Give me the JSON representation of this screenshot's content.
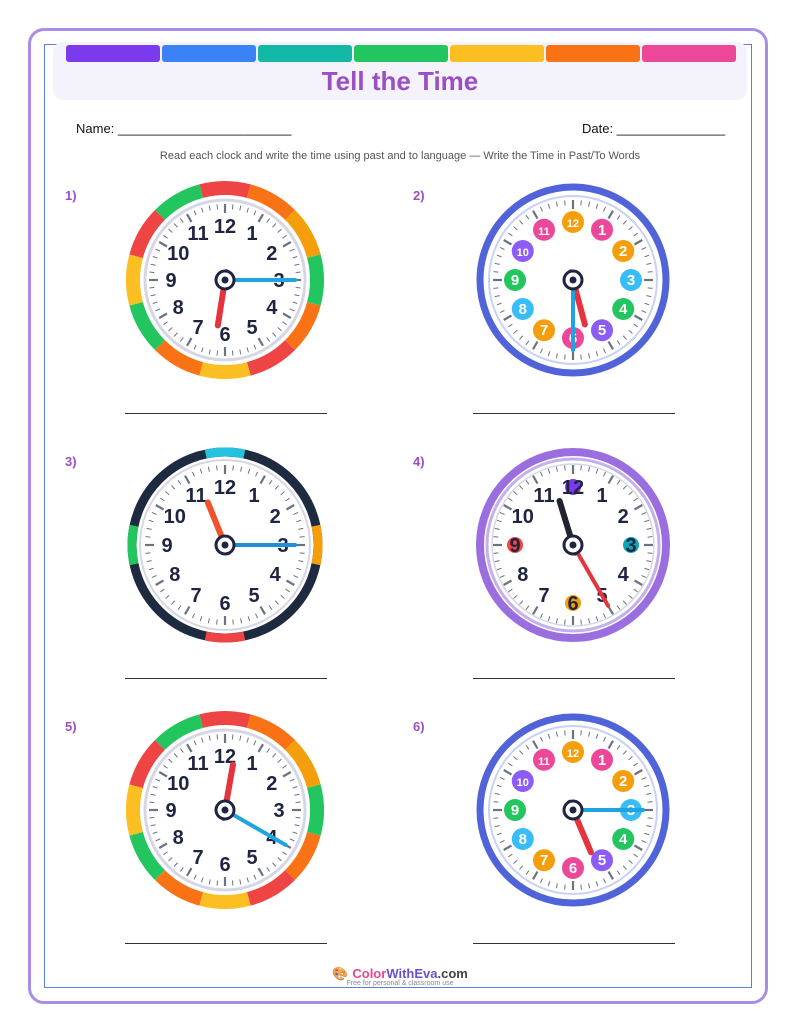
{
  "header": {
    "title": "Tell the Time",
    "rainbow_colors": [
      "#7c3aed",
      "#3b82f6",
      "#14b8a6",
      "#22c55e",
      "#fbbf24",
      "#f97316",
      "#ec4899"
    ],
    "name_label": "Name: ________________________",
    "date_label": "Date: _______________",
    "instructions": "Read each clock and write the time using past and to language — Write the Time in Past/To Words"
  },
  "clocks": [
    {
      "number": "1)",
      "style": "rainbow",
      "hour_hand_deg": 189,
      "minute_hand_deg": 90
    },
    {
      "number": "2)",
      "style": "blue-colorful",
      "hour_hand_deg": 165,
      "minute_hand_deg": 180
    },
    {
      "number": "3)",
      "style": "navy",
      "hour_hand_deg": 338,
      "minute_hand_deg": 90
    },
    {
      "number": "4)",
      "style": "purple",
      "hour_hand_deg": 343,
      "minute_hand_deg": 150
    },
    {
      "number": "5)",
      "style": "rainbow",
      "hour_hand_deg": 10,
      "minute_hand_deg": 120
    },
    {
      "number": "6)",
      "style": "blue-colorful",
      "hour_hand_deg": 157,
      "minute_hand_deg": 90
    }
  ],
  "footer": {
    "brand_part1": "Color",
    "brand_part2": "WithEva",
    "brand_part3": ".com",
    "tagline": "Free for personal & classroom use",
    "icon": "palette-icon"
  }
}
